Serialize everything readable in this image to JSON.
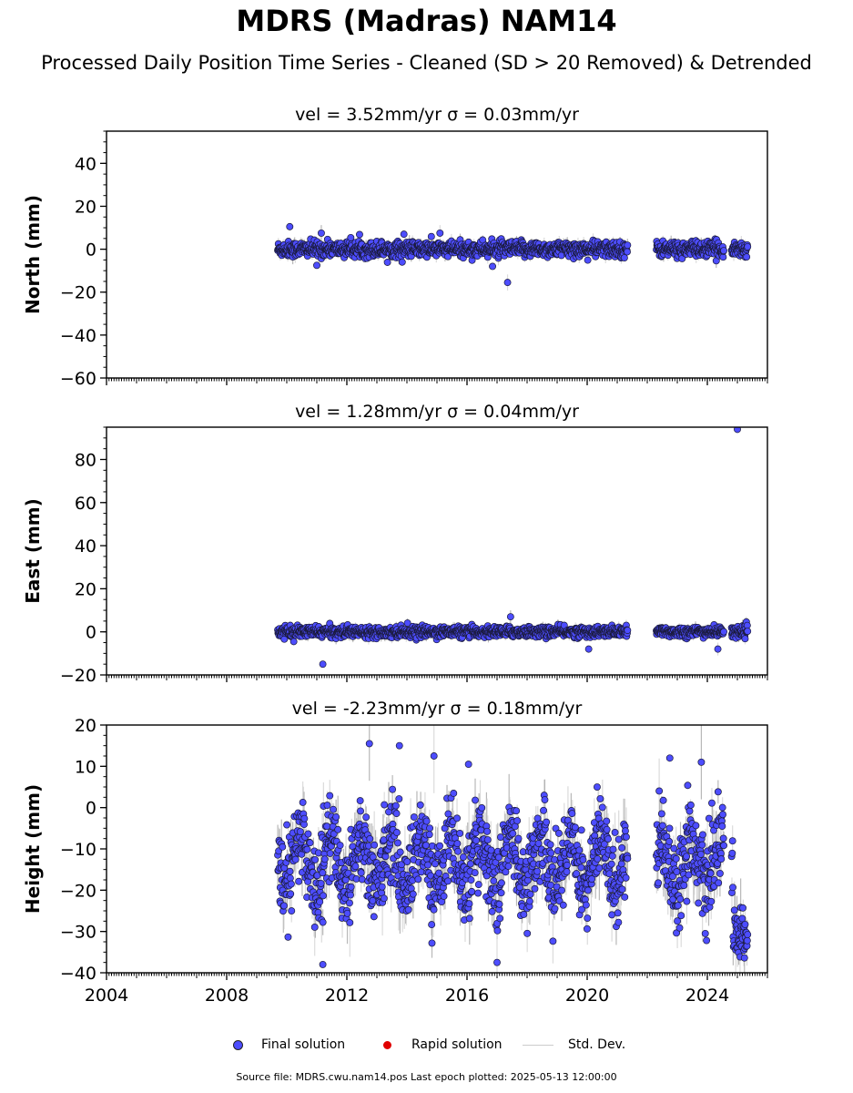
{
  "title": "MDRS (Madras) NAM14",
  "subtitle": "Processed Daily Position Time Series - Cleaned (SD > 20 Removed) & Detrended",
  "legend": {
    "final": "Final solution",
    "rapid": "Rapid solution",
    "std": "Std. Dev."
  },
  "footer": "Source file: MDRS.cwu.nam14.pos  Last epoch plotted: 2025-05-13 12:00:00",
  "colors": {
    "final_fill": "#4d4dff",
    "final_edge": "#1a1a3a",
    "rapid": "#e00000",
    "stddev": "#cccccc",
    "axes": "#000000"
  },
  "chart_data": [
    {
      "type": "scatter",
      "panel": "north",
      "title": "vel = 3.52mm/yr   σ = 0.03mm/yr",
      "ylabel": "North (mm)",
      "xlim": [
        2004,
        2026
      ],
      "ylim": [
        -60,
        55
      ],
      "yticks": [
        -60,
        -40,
        -20,
        0,
        20,
        40
      ],
      "xticks": [
        2004,
        2008,
        2012,
        2016,
        2020,
        2024
      ],
      "show_xtick_labels": false,
      "data_start": 2009.7,
      "data_end": 2025.35,
      "gaps": [
        [
          2021.35,
          2022.3
        ],
        [
          2024.55,
          2024.8
        ]
      ],
      "spread": 1.8,
      "std_typical": 2.5,
      "outliers": [
        {
          "x": 2010.1,
          "y": 10.5
        },
        {
          "x": 2011.15,
          "y": 7.5
        },
        {
          "x": 2013.9,
          "y": 7.0
        },
        {
          "x": 2015.1,
          "y": 7.5
        },
        {
          "x": 2016.85,
          "y": -8.0
        },
        {
          "x": 2017.35,
          "y": -15.5
        },
        {
          "x": 2011.0,
          "y": -7.5
        }
      ],
      "series": [
        {
          "name": "Final solution",
          "x_range": [
            2009.7,
            2025.35
          ]
        }
      ]
    },
    {
      "type": "scatter",
      "panel": "east",
      "title": "vel = 1.28mm/yr   σ = 0.04mm/yr",
      "ylabel": "East (mm)",
      "xlim": [
        2004,
        2026
      ],
      "ylim": [
        -20,
        95
      ],
      "yticks": [
        -20,
        0,
        20,
        40,
        60,
        80
      ],
      "xticks": [
        2004,
        2008,
        2012,
        2016,
        2020,
        2024
      ],
      "show_xtick_labels": false,
      "data_start": 2009.7,
      "data_end": 2025.35,
      "gaps": [
        [
          2021.35,
          2022.3
        ],
        [
          2024.55,
          2024.8
        ]
      ],
      "spread": 1.2,
      "std_typical": 2.0,
      "outliers": [
        {
          "x": 2011.2,
          "y": -15.0
        },
        {
          "x": 2017.45,
          "y": 7.0
        },
        {
          "x": 2020.05,
          "y": -8.0
        },
        {
          "x": 2024.35,
          "y": -8.0
        },
        {
          "x": 2025.0,
          "y": 94.0
        }
      ],
      "series": [
        {
          "name": "Final solution",
          "x_range": [
            2009.7,
            2025.35
          ]
        }
      ]
    },
    {
      "type": "scatter",
      "panel": "height",
      "title": "vel = -2.23mm/yr   σ = 0.18mm/yr",
      "ylabel": "Height (mm)",
      "xlim": [
        2004,
        2026
      ],
      "ylim": [
        -40,
        20
      ],
      "yticks": [
        -40,
        -30,
        -20,
        -10,
        0,
        10,
        20
      ],
      "xticks": [
        2004,
        2008,
        2012,
        2016,
        2020,
        2024
      ],
      "xtick_labels": [
        "2004",
        "2008",
        "2012",
        "2016",
        "2020",
        "2024"
      ],
      "show_xtick_labels": true,
      "data_start": 2009.7,
      "data_end": 2025.35,
      "gaps": [
        [
          2021.35,
          2022.3
        ],
        [
          2024.55,
          2024.8
        ]
      ],
      "mean": -13,
      "seasonal_amplitude": 6,
      "spread": 5,
      "std_typical": 6,
      "late_segment": {
        "x_range": [
          2024.85,
          2025.35
        ],
        "mean": -31,
        "spread": 3
      },
      "outliers": [
        {
          "x": 2011.2,
          "y": -38.0
        },
        {
          "x": 2012.75,
          "y": 15.5
        },
        {
          "x": 2013.75,
          "y": 15.0
        },
        {
          "x": 2014.9,
          "y": 12.5
        },
        {
          "x": 2016.05,
          "y": 10.5
        },
        {
          "x": 2017.0,
          "y": -37.5
        },
        {
          "x": 2022.75,
          "y": 12.0
        },
        {
          "x": 2023.8,
          "y": 11.0
        }
      ],
      "series": [
        {
          "name": "Final solution",
          "x_range": [
            2009.7,
            2025.35
          ]
        }
      ]
    }
  ]
}
